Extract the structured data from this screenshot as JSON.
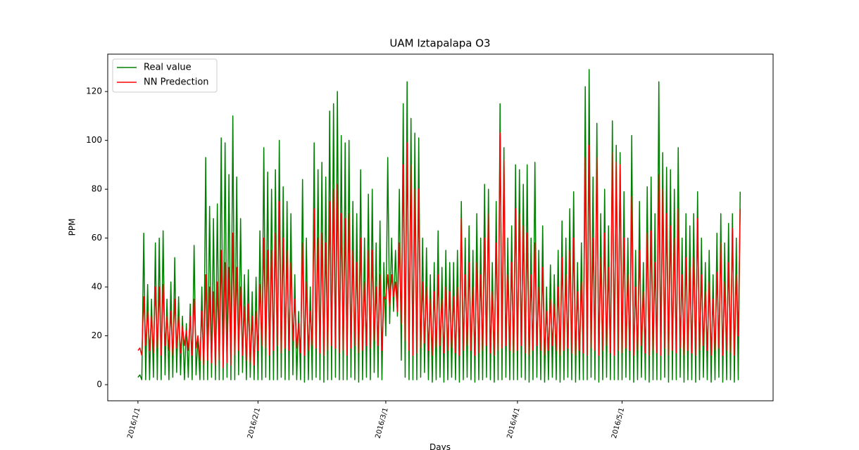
{
  "chart_data": {
    "type": "line",
    "title": "UAM Iztapalapa O3",
    "x_label": "Days",
    "y_label": "PPM",
    "xlim": [
      -15.6,
      328
    ],
    "xticks": [
      {
        "value": 0,
        "label": "2016/1/1"
      },
      {
        "value": 62,
        "label": "2016/2/1"
      },
      {
        "value": 128,
        "label": "2016/3/1"
      },
      {
        "value": 196,
        "label": "2016/4/1"
      },
      {
        "value": 250,
        "label": "2016/5/1"
      }
    ],
    "ylim": [
      -6.6,
      135.3
    ],
    "yticks": [
      0,
      20,
      40,
      60,
      80,
      100,
      120
    ],
    "grid": false,
    "legend": "upper left",
    "series": [
      {
        "name": "Real value",
        "color": "#008000",
        "values": [
          3,
          4,
          2,
          62,
          2,
          41,
          2,
          35,
          3,
          58,
          2,
          60,
          2,
          63,
          4,
          35,
          2,
          42,
          3,
          52,
          5,
          36,
          4,
          28,
          2,
          25,
          3,
          33,
          2,
          57,
          4,
          20,
          2,
          40,
          2,
          93,
          2,
          73,
          3,
          68,
          2,
          74,
          2,
          101,
          2,
          99,
          3,
          86,
          2,
          110,
          2,
          85,
          4,
          68,
          5,
          45,
          2,
          47,
          3,
          38,
          2,
          44,
          2,
          63,
          2,
          97,
          3,
          87,
          2,
          80,
          2,
          88,
          2,
          100,
          3,
          81,
          2,
          75,
          2,
          70,
          4,
          45,
          2,
          30,
          2,
          84,
          1,
          60,
          2,
          40,
          2,
          99,
          3,
          88,
          2,
          91,
          1,
          85,
          2,
          112,
          2,
          115,
          3,
          120,
          2,
          102,
          2,
          99,
          2,
          100,
          3,
          75,
          2,
          70,
          1,
          88,
          2,
          60,
          3,
          78,
          2,
          80,
          5,
          58,
          3,
          67,
          2,
          50,
          20,
          93,
          25,
          60,
          30,
          55,
          28,
          80,
          10,
          115,
          3,
          124,
          2,
          109,
          2,
          103,
          2,
          101,
          3,
          60,
          5,
          56,
          2,
          45,
          1,
          50,
          2,
          63,
          3,
          48,
          1,
          55,
          2,
          50,
          3,
          50,
          2,
          55,
          1,
          75,
          2,
          60,
          3,
          65,
          2,
          55,
          1,
          70,
          2,
          60,
          2,
          82,
          3,
          80,
          2,
          50,
          1,
          75,
          2,
          115,
          2,
          97,
          3,
          60,
          2,
          65,
          2,
          90,
          2,
          88,
          3,
          82,
          2,
          90,
          1,
          60,
          2,
          91,
          3,
          55,
          2,
          65,
          1,
          40,
          2,
          49,
          3,
          45,
          2,
          55,
          1,
          67,
          2,
          60,
          3,
          72,
          2,
          79,
          1,
          50,
          2,
          58,
          2,
          122,
          2,
          129,
          3,
          85,
          2,
          107,
          1,
          70,
          2,
          80,
          3,
          65,
          2,
          108,
          2,
          98,
          2,
          95,
          2,
          79,
          3,
          60,
          2,
          102,
          1,
          55,
          2,
          75,
          3,
          50,
          2,
          81,
          1,
          85,
          2,
          70,
          2,
          124,
          2,
          95,
          3,
          89,
          1,
          88,
          2,
          80,
          2,
          97,
          3,
          60,
          1,
          70,
          2,
          65,
          2,
          70,
          1,
          79,
          2,
          60,
          3,
          50,
          2,
          55,
          1,
          45,
          2,
          62,
          3,
          70,
          1,
          58,
          2,
          66,
          2,
          70,
          1,
          60,
          2,
          79
        ]
      },
      {
        "name": "NN Predection",
        "color": "#ff0000",
        "values": [
          14,
          15,
          12,
          36,
          16,
          30,
          14,
          28,
          13,
          40,
          15,
          40,
          12,
          41,
          16,
          28,
          14,
          30,
          12,
          35,
          15,
          28,
          13,
          24,
          16,
          22,
          14,
          28,
          12,
          35,
          15,
          20,
          10,
          30,
          8,
          45,
          10,
          40,
          9,
          38,
          8,
          42,
          10,
          55,
          7,
          50,
          9,
          48,
          8,
          62,
          12,
          48,
          14,
          40,
          12,
          32,
          10,
          33,
          9,
          28,
          8,
          30,
          14,
          41,
          16,
          60,
          15,
          55,
          12,
          55,
          14,
          62,
          16,
          75,
          13,
          60,
          15,
          55,
          14,
          50,
          18,
          35,
          15,
          25,
          13,
          58,
          12,
          42,
          14,
          30,
          16,
          72,
          15,
          60,
          13,
          62,
          12,
          58,
          14,
          75,
          16,
          80,
          15,
          82,
          13,
          70,
          14,
          68,
          12,
          70,
          15,
          55,
          16,
          50,
          13,
          60,
          14,
          42,
          16,
          55,
          15,
          55,
          18,
          40,
          16,
          45,
          14,
          36,
          35,
          45,
          32,
          45,
          36,
          42,
          30,
          58,
          25,
          90,
          18,
          99,
          14,
          90,
          12,
          80,
          13,
          80,
          15,
          42,
          17,
          40,
          14,
          35,
          12,
          38,
          15,
          45,
          16,
          35,
          13,
          40,
          14,
          38,
          15,
          36,
          13,
          40,
          12,
          68,
          14,
          45,
          16,
          50,
          14,
          40,
          12,
          50,
          13,
          45,
          14,
          60,
          16,
          70,
          13,
          38,
          12,
          58,
          14,
          103,
          15,
          92,
          16,
          45,
          14,
          50,
          13,
          72,
          14,
          70,
          16,
          65,
          13,
          62,
          12,
          45,
          14,
          58,
          16,
          40,
          14,
          48,
          12,
          30,
          14,
          35,
          16,
          33,
          14,
          40,
          12,
          52,
          14,
          45,
          15,
          55,
          13,
          60,
          12,
          38,
          14,
          42,
          13,
          93,
          12,
          98,
          15,
          60,
          14,
          93,
          12,
          52,
          14,
          62,
          16,
          48,
          13,
          95,
          12,
          91,
          14,
          90,
          13,
          60,
          15,
          45,
          14,
          77,
          12,
          40,
          14,
          55,
          16,
          38,
          13,
          62,
          12,
          63,
          14,
          50,
          13,
          86,
          12,
          80,
          15,
          70,
          12,
          65,
          14,
          60,
          13,
          72,
          15,
          45,
          12,
          52,
          14,
          48,
          13,
          52,
          12,
          68,
          14,
          45,
          16,
          38,
          14,
          42,
          12,
          35,
          14,
          46,
          15,
          58,
          12,
          42,
          14,
          50,
          13,
          64,
          12,
          45,
          20,
          72
        ]
      }
    ]
  }
}
